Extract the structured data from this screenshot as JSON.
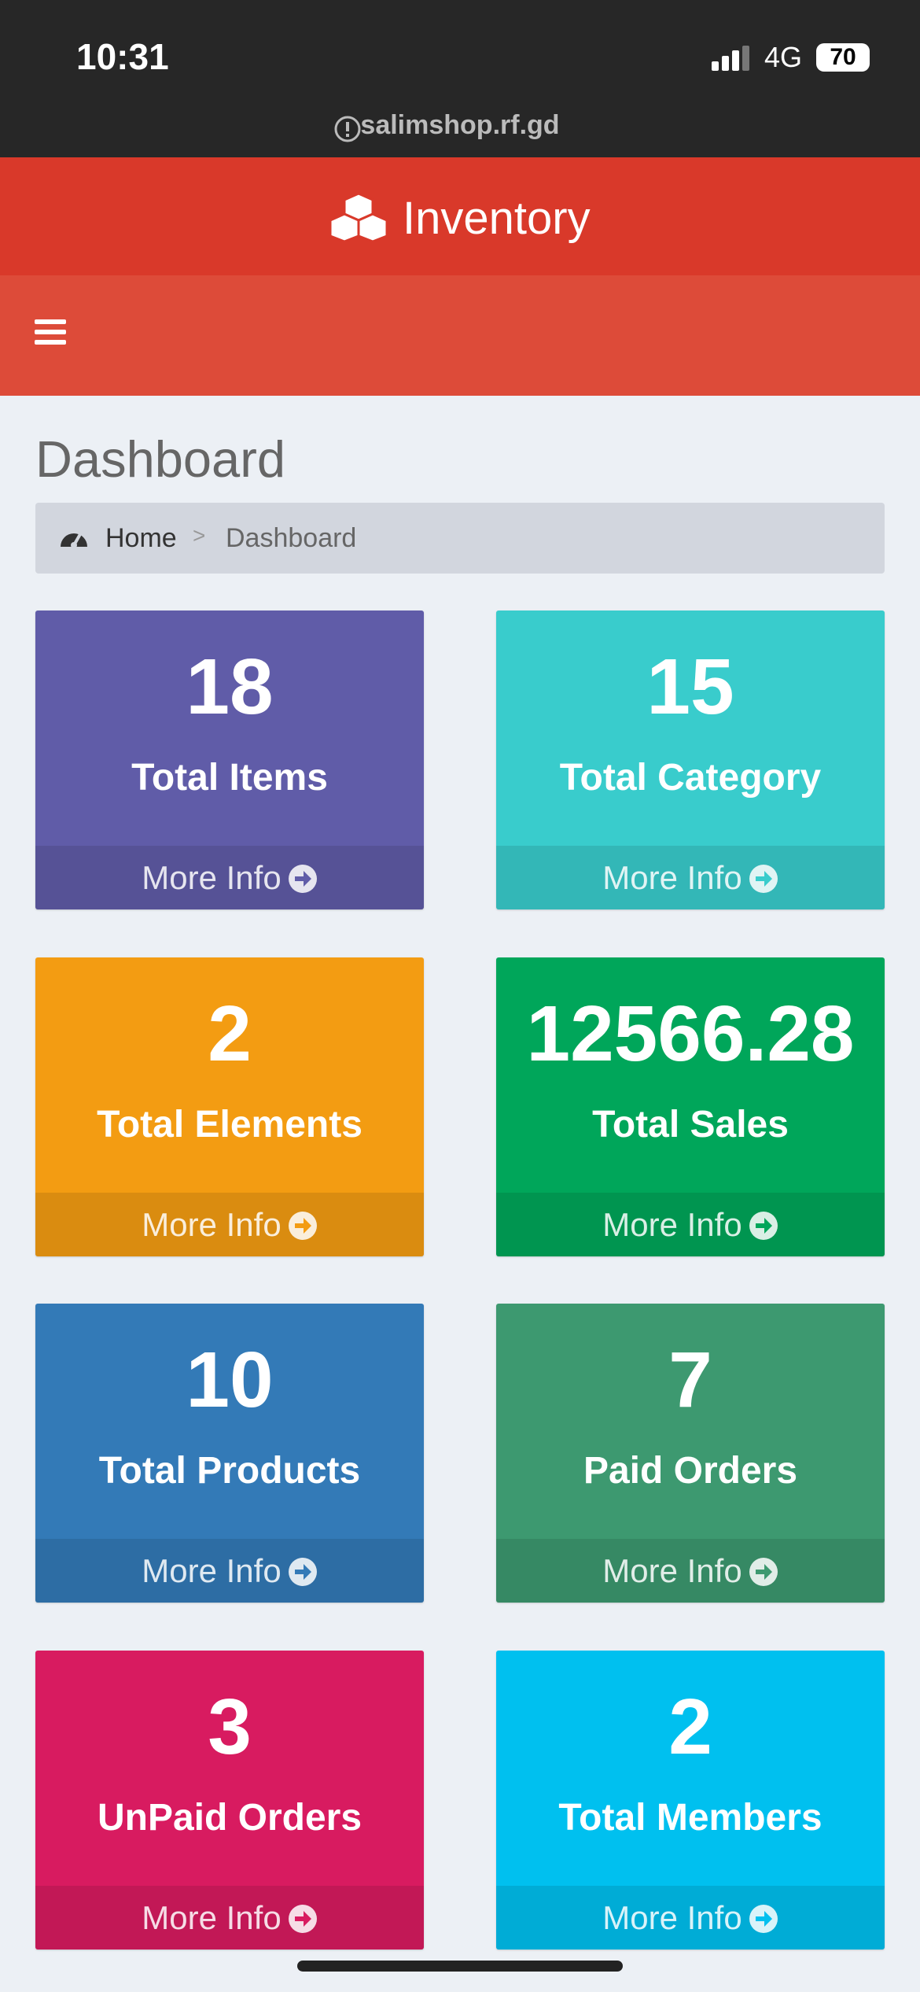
{
  "status_bar": {
    "time": "10:31",
    "network": "4G",
    "battery": "70"
  },
  "url": "salimshop.rf.gd",
  "header": {
    "title": "Inventory"
  },
  "page": {
    "title": "Dashboard"
  },
  "breadcrumb": [
    "Home",
    ">",
    "Dashboard"
  ],
  "cards": [
    {
      "value": 18,
      "label": "Total Items",
      "link": "More Info",
      "color": "#605ca8"
    },
    {
      "value": 15,
      "label": "Total Category",
      "link": "More Info",
      "color": "#39cccc"
    },
    {
      "value": 2,
      "label": "Total Elements",
      "link": "More Info",
      "color": "#f39c12"
    },
    {
      "value": 12566.28,
      "label": "Total Sales",
      "link": "More Info",
      "color": "#00a65a"
    },
    {
      "value": 10,
      "label": "Total Products",
      "link": "More Info",
      "color": "#337ab7"
    },
    {
      "value": 7,
      "label": "Paid Orders",
      "link": "More Info",
      "color": "#3d9970"
    },
    {
      "value": 3,
      "label": "UnPaid Orders",
      "link": "More Info",
      "color": "#d81b60"
    },
    {
      "value": 2,
      "label": "Total Members",
      "link": "More Info",
      "color": "#00c0ef"
    }
  ]
}
